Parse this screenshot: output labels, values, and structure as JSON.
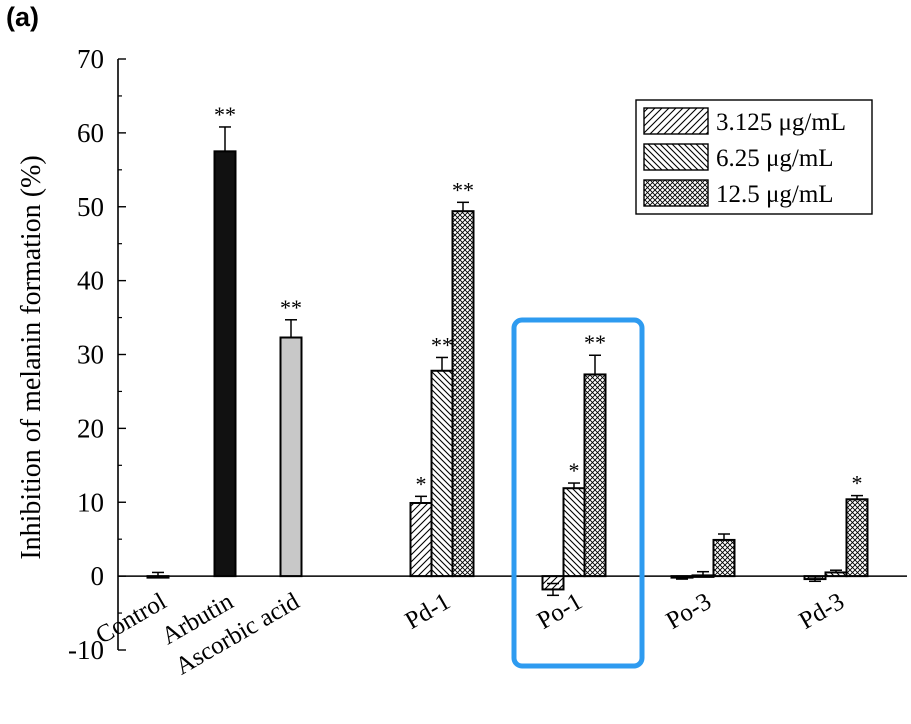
{
  "panel_label": "(a)",
  "chart_data": {
    "type": "bar",
    "title": "",
    "xlabel": "",
    "ylabel": "Inhibition of melanin formation (%)",
    "ylim": [
      -10,
      70
    ],
    "yticks": [
      -10,
      0,
      10,
      20,
      30,
      40,
      50,
      60,
      70
    ],
    "grid": false,
    "legend_position": "top-right",
    "categories": [
      "Control",
      "Arbutin",
      "Ascorbic acid",
      "Pd-1",
      "Po-1",
      "Po-3",
      "Pd-3"
    ],
    "legend": [
      {
        "label": "3.125 μg/mL",
        "pattern": "hatch-forward"
      },
      {
        "label": "6.25 μg/mL",
        "pattern": "hatch-backward"
      },
      {
        "label": "12.5 μg/mL",
        "pattern": "crosshatch"
      }
    ],
    "bars": [
      {
        "category": "Control",
        "series": "control",
        "value": 0.0,
        "error": 0.5,
        "sig": "",
        "fill": "#ffffff"
      },
      {
        "category": "Arbutin",
        "series": "control",
        "value": 57.5,
        "error": 3.3,
        "sig": "**",
        "fill": "#111111"
      },
      {
        "category": "Ascorbic acid",
        "series": "control",
        "value": 32.3,
        "error": 2.4,
        "sig": "**",
        "fill": "#c8c8c8"
      },
      {
        "category": "Pd-1",
        "series": "3.125 μg/mL",
        "value": 9.9,
        "error": 0.9,
        "sig": "*"
      },
      {
        "category": "Pd-1",
        "series": "6.25 μg/mL",
        "value": 27.8,
        "error": 1.8,
        "sig": "**"
      },
      {
        "category": "Pd-1",
        "series": "12.5 μg/mL",
        "value": 49.4,
        "error": 1.2,
        "sig": "**"
      },
      {
        "category": "Po-1",
        "series": "3.125 μg/mL",
        "value": -1.8,
        "error": 0.8,
        "sig": ""
      },
      {
        "category": "Po-1",
        "series": "6.25 μg/mL",
        "value": 11.9,
        "error": 0.7,
        "sig": "*"
      },
      {
        "category": "Po-1",
        "series": "12.5 μg/mL",
        "value": 27.3,
        "error": 2.6,
        "sig": "**"
      },
      {
        "category": "Po-3",
        "series": "3.125 μg/mL",
        "value": -0.2,
        "error": 0.2,
        "sig": ""
      },
      {
        "category": "Po-3",
        "series": "6.25 μg/mL",
        "value": 0.1,
        "error": 0.5,
        "sig": ""
      },
      {
        "category": "Po-3",
        "series": "12.5 μg/mL",
        "value": 4.9,
        "error": 0.8,
        "sig": ""
      },
      {
        "category": "Pd-3",
        "series": "3.125 μg/mL",
        "value": -0.4,
        "error": 0.3,
        "sig": ""
      },
      {
        "category": "Pd-3",
        "series": "6.25 μg/mL",
        "value": 0.5,
        "error": 0.3,
        "sig": ""
      },
      {
        "category": "Pd-3",
        "series": "12.5 μg/mL",
        "value": 10.4,
        "error": 0.5,
        "sig": "*"
      }
    ],
    "highlight": {
      "category": "Po-1",
      "color": "#2e9bf0"
    }
  }
}
